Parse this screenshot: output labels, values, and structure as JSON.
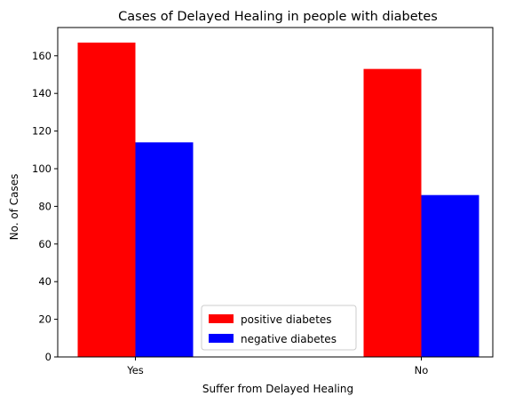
{
  "chart_data": {
    "type": "bar",
    "title": "Cases of Delayed Healing in people with diabetes",
    "xlabel": "Suffer from Delayed Healing",
    "ylabel": "No. of Cases",
    "categories": [
      "Yes",
      "No"
    ],
    "series": [
      {
        "name": "positive diabetes",
        "values": [
          167,
          153
        ],
        "color": "#ff0000"
      },
      {
        "name": "negative diabetes",
        "values": [
          114,
          86
        ],
        "color": "#0000ff"
      }
    ],
    "ylim": [
      0,
      175
    ],
    "yticks": [
      0,
      20,
      40,
      60,
      80,
      100,
      120,
      140,
      160
    ],
    "grid": false,
    "legend_position": "lower-center"
  }
}
